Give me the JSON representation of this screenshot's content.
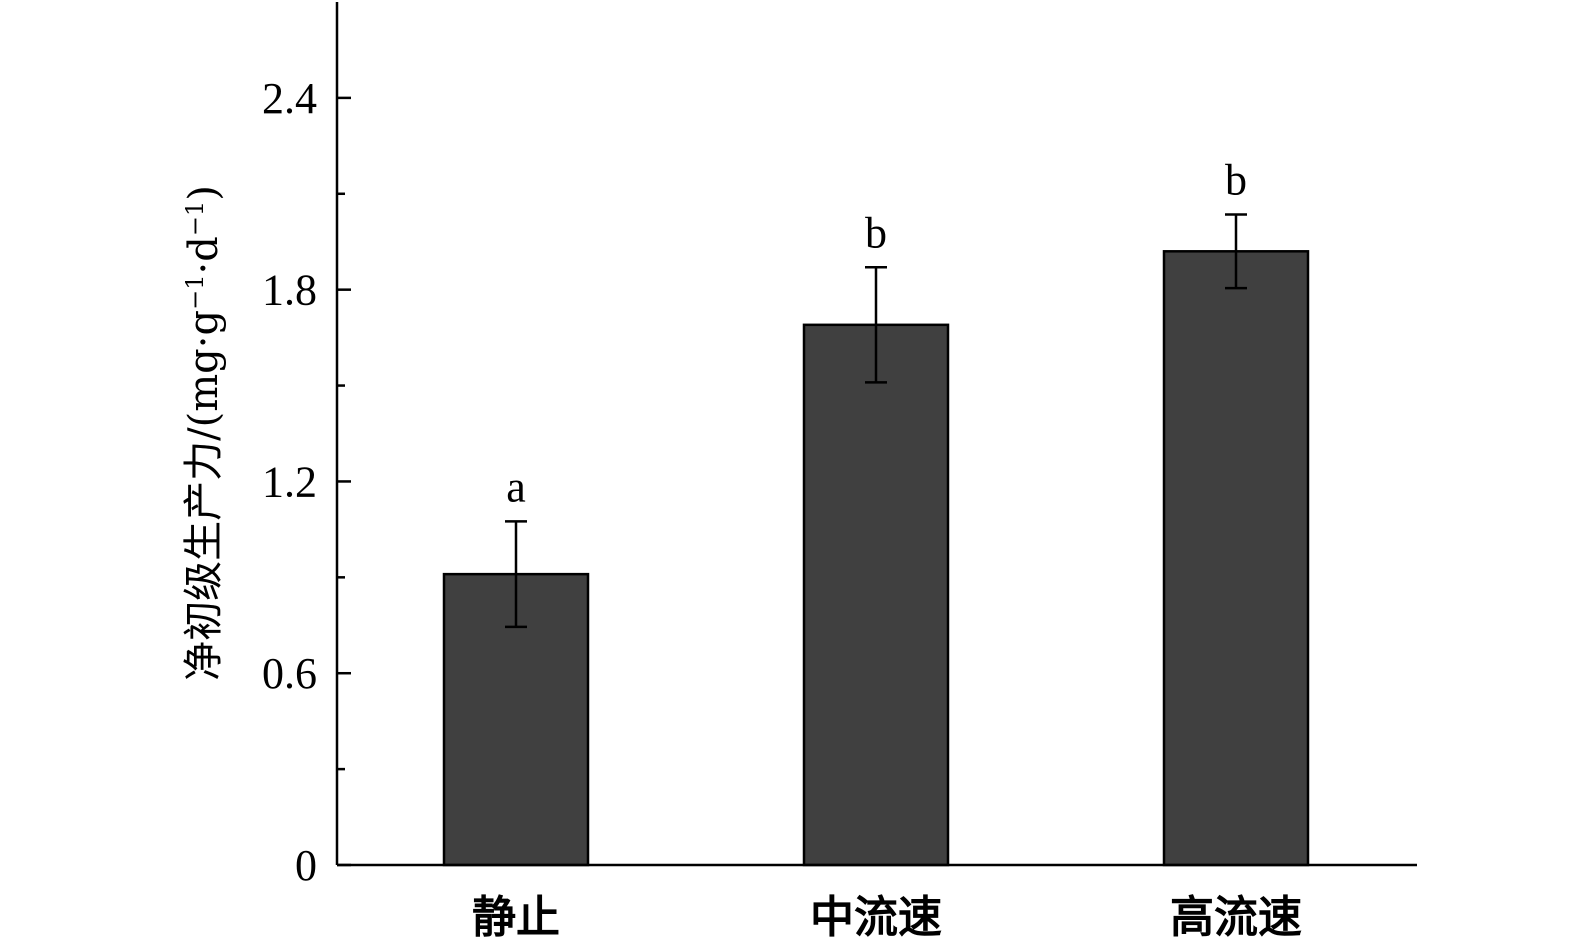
{
  "chart_data": {
    "type": "bar",
    "categories": [
      "静止",
      "中流速",
      "高流速"
    ],
    "values": [
      0.91,
      1.69,
      1.92
    ],
    "errors": [
      0.165,
      0.18,
      0.115
    ],
    "significance": [
      "a",
      "b",
      "b"
    ],
    "ylabel": {
      "main": "净初级生产力/(mg·g",
      "sup1": "−1",
      "mid": "·d",
      "sup2": "−1",
      "end": ")"
    },
    "ylim": [
      0,
      2.7
    ],
    "yticks": [
      0,
      0.6,
      1.2,
      1.8,
      2.4
    ],
    "ytick_labels": [
      "0",
      "0.6",
      "1.2",
      "1.8",
      "2.4"
    ],
    "minor_yticks": [
      0.3,
      0.9,
      1.5,
      2.1
    ],
    "bar_color": "#404040",
    "grid": false,
    "legend": "none"
  }
}
